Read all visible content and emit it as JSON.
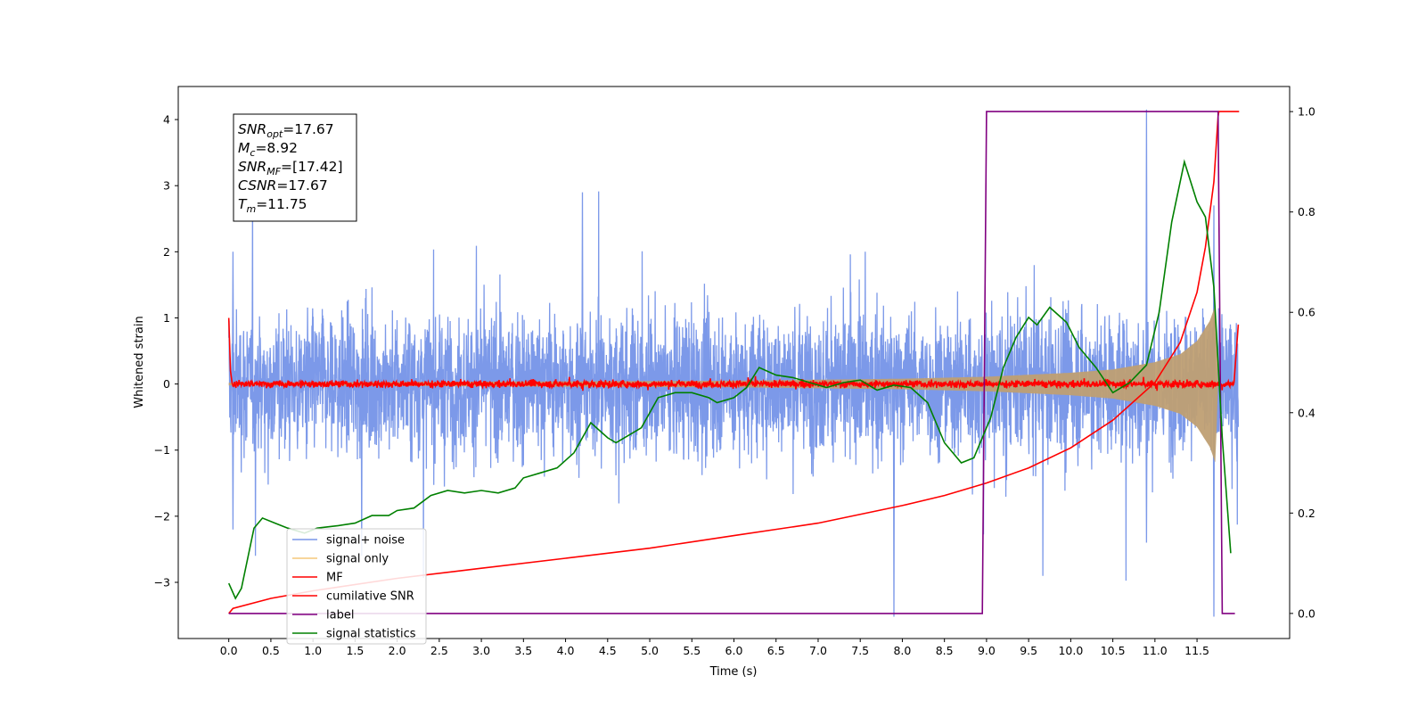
{
  "chart_data": {
    "type": "line",
    "xlabel": "Time (s)",
    "ylabel": "Whitened strain",
    "xlim": [
      -0.6,
      12.6
    ],
    "ylim_left": [
      -3.85,
      4.5
    ],
    "ylim_right": [
      -0.05,
      1.05
    ],
    "x_ticks": [
      "0.0",
      "0.5",
      "1.0",
      "1.5",
      "2.0",
      "2.5",
      "3.0",
      "3.5",
      "4.0",
      "4.5",
      "5.0",
      "5.5",
      "6.0",
      "6.5",
      "7.0",
      "7.5",
      "8.0",
      "8.5",
      "9.0",
      "9.5",
      "10.0",
      "10.5",
      "11.0",
      "11.5"
    ],
    "y_ticks_left": [
      "−3",
      "−2",
      "−1",
      "0",
      "1",
      "2",
      "3",
      "4"
    ],
    "y_ticks_right": [
      "0.0",
      "0.2",
      "0.4",
      "0.6",
      "0.8",
      "1.0"
    ],
    "grid": false,
    "legend_position": "lower-left",
    "info_box": {
      "lines": [
        {
          "sym": "SNR",
          "sub": "opt",
          "rest": "=17.67"
        },
        {
          "sym": "M",
          "sub": "c",
          "rest": "=8.92"
        },
        {
          "sym": "SNR",
          "sub": "MF",
          "rest": "=[17.42]"
        },
        {
          "sym": "CSNR",
          "sub": "",
          "rest": "=17.67"
        },
        {
          "sym": "T",
          "sub": "m",
          "rest": "=11.75"
        }
      ]
    },
    "series": [
      {
        "name": "signal+ noise",
        "color": "#7896e8",
        "axis": "left",
        "style": "noise band approx. ±1.3 with spikes to about ±2.8; max spike ≈4.15 at 10.9 s, min ≈-3.5 at 7.9 s and 11.7 s"
      },
      {
        "name": "signal only",
        "color": "#f5c77a",
        "axis": "left",
        "envelope": {
          "t": [
            0,
            2,
            4,
            6,
            8,
            9,
            10,
            10.5,
            11,
            11.3,
            11.5,
            11.65,
            11.72,
            11.75
          ],
          "amp": [
            0.02,
            0.03,
            0.04,
            0.05,
            0.08,
            0.11,
            0.17,
            0.22,
            0.33,
            0.45,
            0.65,
            0.95,
            1.2,
            0
          ]
        }
      },
      {
        "name": "MF",
        "color": "#ff0000",
        "axis": "left",
        "points": [
          [
            0.0,
            1.0
          ],
          [
            0.02,
            0.2
          ],
          [
            0.05,
            0.0
          ],
          [
            11.95,
            0.0
          ],
          [
            11.99,
            0.9
          ]
        ]
      },
      {
        "name": "cumilative SNR",
        "color": "#ff0000",
        "axis": "right",
        "points": [
          [
            0.0,
            0.0
          ],
          [
            0.05,
            0.01
          ],
          [
            0.5,
            0.03
          ],
          [
            1.0,
            0.045
          ],
          [
            2.0,
            0.07
          ],
          [
            3.0,
            0.09
          ],
          [
            4.0,
            0.11
          ],
          [
            5.0,
            0.13
          ],
          [
            6.0,
            0.155
          ],
          [
            7.0,
            0.18
          ],
          [
            8.0,
            0.215
          ],
          [
            8.5,
            0.235
          ],
          [
            9.0,
            0.26
          ],
          [
            9.5,
            0.29
          ],
          [
            10.0,
            0.33
          ],
          [
            10.5,
            0.385
          ],
          [
            11.0,
            0.46
          ],
          [
            11.3,
            0.54
          ],
          [
            11.5,
            0.64
          ],
          [
            11.6,
            0.73
          ],
          [
            11.7,
            0.86
          ],
          [
            11.75,
            0.99
          ],
          [
            11.76,
            1.0
          ],
          [
            12.0,
            1.0
          ]
        ]
      },
      {
        "name": "label",
        "color": "#800080",
        "axis": "right",
        "points": [
          [
            0.0,
            0.0
          ],
          [
            8.95,
            0.0
          ],
          [
            9.0,
            1.0
          ],
          [
            11.75,
            1.0
          ],
          [
            11.8,
            0.0
          ],
          [
            11.95,
            0.0
          ]
        ]
      },
      {
        "name": "signal statistics",
        "color": "#008000",
        "axis": "right",
        "points": [
          [
            0.0,
            0.06
          ],
          [
            0.08,
            0.03
          ],
          [
            0.15,
            0.05
          ],
          [
            0.3,
            0.17
          ],
          [
            0.4,
            0.19
          ],
          [
            0.55,
            0.18
          ],
          [
            0.7,
            0.17
          ],
          [
            0.9,
            0.16
          ],
          [
            1.05,
            0.17
          ],
          [
            1.3,
            0.175
          ],
          [
            1.5,
            0.18
          ],
          [
            1.7,
            0.195
          ],
          [
            1.9,
            0.195
          ],
          [
            2.0,
            0.205
          ],
          [
            2.2,
            0.21
          ],
          [
            2.4,
            0.235
          ],
          [
            2.6,
            0.245
          ],
          [
            2.8,
            0.24
          ],
          [
            3.0,
            0.245
          ],
          [
            3.2,
            0.24
          ],
          [
            3.4,
            0.25
          ],
          [
            3.5,
            0.27
          ],
          [
            3.7,
            0.28
          ],
          [
            3.9,
            0.29
          ],
          [
            4.1,
            0.32
          ],
          [
            4.3,
            0.38
          ],
          [
            4.5,
            0.35
          ],
          [
            4.6,
            0.34
          ],
          [
            4.8,
            0.36
          ],
          [
            4.9,
            0.37
          ],
          [
            5.1,
            0.43
          ],
          [
            5.3,
            0.44
          ],
          [
            5.5,
            0.44
          ],
          [
            5.7,
            0.43
          ],
          [
            5.8,
            0.42
          ],
          [
            6.0,
            0.43
          ],
          [
            6.15,
            0.45
          ],
          [
            6.3,
            0.49
          ],
          [
            6.5,
            0.475
          ],
          [
            6.7,
            0.47
          ],
          [
            6.9,
            0.46
          ],
          [
            7.1,
            0.45
          ],
          [
            7.3,
            0.46
          ],
          [
            7.5,
            0.465
          ],
          [
            7.7,
            0.445
          ],
          [
            7.9,
            0.455
          ],
          [
            8.1,
            0.45
          ],
          [
            8.3,
            0.42
          ],
          [
            8.5,
            0.34
          ],
          [
            8.7,
            0.3
          ],
          [
            8.85,
            0.31
          ],
          [
            9.05,
            0.39
          ],
          [
            9.2,
            0.49
          ],
          [
            9.35,
            0.55
          ],
          [
            9.5,
            0.59
          ],
          [
            9.6,
            0.575
          ],
          [
            9.75,
            0.61
          ],
          [
            9.95,
            0.58
          ],
          [
            10.1,
            0.53
          ],
          [
            10.3,
            0.49
          ],
          [
            10.5,
            0.44
          ],
          [
            10.7,
            0.46
          ],
          [
            10.9,
            0.495
          ],
          [
            11.05,
            0.6
          ],
          [
            11.2,
            0.78
          ],
          [
            11.35,
            0.9
          ],
          [
            11.5,
            0.82
          ],
          [
            11.6,
            0.79
          ],
          [
            11.7,
            0.65
          ],
          [
            11.8,
            0.35
          ],
          [
            11.9,
            0.12
          ]
        ]
      }
    ]
  }
}
